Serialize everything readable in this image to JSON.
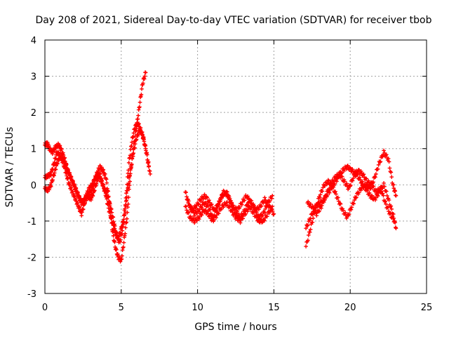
{
  "chart_data": {
    "type": "scatter",
    "title": "Day 208 of 2021, Sidereal Day-to-day VTEC variation (SDTVAR) for receiver tbob",
    "xlabel": "GPS time / hours",
    "ylabel": "SDTVAR / TECUs",
    "xlim": [
      0,
      25
    ],
    "ylim": [
      -3,
      4
    ],
    "x_ticks": [
      0,
      5,
      10,
      15,
      20,
      25
    ],
    "y_ticks": [
      -3,
      -2,
      -1,
      0,
      1,
      2,
      3,
      4
    ],
    "grid": true,
    "marker": "+",
    "series": [
      {
        "name": "SDTVAR",
        "color": "#ff0000",
        "segments": [
          {
            "x": [
              0.0,
              0.15,
              0.3,
              0.5,
              0.7,
              0.9,
              1.1,
              1.3,
              1.5,
              1.7,
              1.9,
              2.1,
              2.3,
              2.5,
              2.7,
              2.9,
              3.1,
              3.3,
              3.5,
              3.7,
              3.9,
              4.1,
              4.3,
              4.5,
              4.7,
              4.9,
              5.1,
              5.3,
              5.5,
              5.7,
              5.9,
              6.1,
              6.3,
              6.5,
              6.7,
              6.9
            ],
            "y": [
              1.1,
              1.15,
              1.0,
              0.9,
              1.05,
              1.1,
              0.95,
              0.7,
              0.4,
              0.2,
              0.0,
              -0.2,
              -0.4,
              -0.5,
              -0.3,
              -0.1,
              0.0,
              0.2,
              0.3,
              0.1,
              -0.1,
              -0.3,
              -0.6,
              -1.0,
              -1.4,
              -1.6,
              -1.2,
              -0.4,
              0.6,
              1.2,
              1.6,
              1.7,
              1.5,
              1.2,
              0.8,
              0.3
            ]
          },
          {
            "x": [
              0.0,
              0.2,
              0.4,
              0.6,
              0.8,
              1.0,
              1.2,
              1.4,
              1.6,
              1.8,
              2.0,
              2.2,
              2.4,
              2.6,
              2.8,
              3.0,
              3.2,
              3.4,
              3.6,
              3.8,
              4.0,
              4.2,
              4.4,
              4.6,
              4.8,
              5.0,
              5.2,
              5.4,
              5.6,
              5.8,
              6.0,
              6.2,
              6.4,
              6.6
            ],
            "y": [
              0.2,
              0.25,
              0.3,
              0.6,
              0.9,
              0.8,
              0.7,
              0.5,
              0.3,
              0.1,
              -0.1,
              -0.3,
              -0.5,
              -0.4,
              -0.3,
              -0.2,
              0.0,
              0.3,
              0.5,
              0.4,
              0.2,
              -0.4,
              -1.2,
              -1.7,
              -2.0,
              -2.1,
              -1.5,
              -0.8,
              0.3,
              1.0,
              1.6,
              2.2,
              2.8,
              3.1
            ]
          },
          {
            "x": [
              0.0,
              0.2,
              0.4,
              0.6,
              0.8,
              1.0,
              1.2,
              1.4,
              1.6,
              1.8,
              2.0,
              2.2,
              2.4,
              2.6,
              2.8,
              3.0,
              3.2,
              3.4,
              3.6,
              3.8,
              4.0,
              4.2,
              4.4,
              4.6,
              4.8,
              5.0,
              5.2,
              5.4,
              5.6,
              5.8,
              6.0,
              6.2,
              6.4,
              6.6,
              6.8
            ],
            "y": [
              -0.1,
              -0.15,
              0.0,
              0.3,
              0.6,
              0.8,
              0.6,
              0.3,
              0.0,
              -0.2,
              -0.4,
              -0.6,
              -0.8,
              -0.5,
              -0.3,
              -0.4,
              -0.2,
              0.1,
              0.3,
              0.0,
              -0.3,
              -0.7,
              -1.0,
              -1.3,
              -1.5,
              -1.2,
              -0.9,
              -0.2,
              0.4,
              0.9,
              1.3,
              1.5,
              1.4,
              1.0,
              0.5
            ]
          },
          {
            "x": [
              9.2,
              9.5,
              9.8,
              10.1,
              10.4,
              10.7,
              11.0,
              11.3,
              11.6,
              11.9,
              12.2,
              12.5,
              12.8,
              13.1,
              13.4,
              13.7,
              14.0,
              14.3,
              14.6,
              14.9
            ],
            "y": [
              -0.2,
              -0.6,
              -0.8,
              -0.7,
              -0.5,
              -0.6,
              -0.9,
              -0.6,
              -0.3,
              -0.2,
              -0.5,
              -0.8,
              -0.9,
              -0.7,
              -0.4,
              -0.6,
              -0.9,
              -0.8,
              -0.5,
              -0.3
            ]
          },
          {
            "x": [
              9.2,
              9.5,
              9.8,
              10.1,
              10.4,
              10.7,
              11.0,
              11.3,
              11.6,
              11.9,
              12.2,
              12.5,
              12.8,
              13.1,
              13.4,
              13.7,
              14.0,
              14.3,
              14.6,
              14.9
            ],
            "y": [
              -0.6,
              -0.9,
              -1.0,
              -0.9,
              -0.7,
              -0.8,
              -1.0,
              -0.8,
              -0.6,
              -0.5,
              -0.7,
              -0.9,
              -1.0,
              -0.8,
              -0.6,
              -0.8,
              -1.0,
              -1.0,
              -0.8,
              -0.6
            ]
          },
          {
            "x": [
              9.3,
              9.6,
              9.9,
              10.2,
              10.5,
              10.8,
              11.1,
              11.4,
              11.7,
              12.0,
              12.3,
              12.6,
              12.9,
              13.2,
              13.5,
              13.8,
              14.1,
              14.4,
              14.7,
              15.0
            ],
            "y": [
              -0.4,
              -0.7,
              -0.6,
              -0.4,
              -0.3,
              -0.5,
              -0.7,
              -0.5,
              -0.2,
              -0.3,
              -0.6,
              -0.7,
              -0.5,
              -0.3,
              -0.5,
              -0.7,
              -0.6,
              -0.4,
              -0.6,
              -0.8
            ]
          },
          {
            "x": [
              17.1,
              17.4,
              17.7,
              18.0,
              18.3,
              18.6,
              18.9,
              19.2,
              19.5,
              19.8,
              20.1,
              20.4,
              20.7,
              21.0,
              21.3,
              21.6,
              21.9,
              22.2,
              22.5,
              22.8,
              23.0
            ],
            "y": [
              -1.7,
              -1.2,
              -0.7,
              -0.3,
              0.0,
              0.1,
              -0.1,
              -0.4,
              -0.7,
              -0.9,
              -0.6,
              -0.3,
              -0.1,
              0.0,
              -0.1,
              0.2,
              0.6,
              0.9,
              0.7,
              0.0,
              -0.3
            ]
          },
          {
            "x": [
              17.1,
              17.4,
              17.7,
              18.0,
              18.3,
              18.6,
              18.9,
              19.2,
              19.5,
              19.8,
              20.1,
              20.4,
              20.7,
              21.0,
              21.3,
              21.6,
              21.9,
              22.2,
              22.5,
              22.8,
              23.0
            ],
            "y": [
              -1.2,
              -0.9,
              -0.6,
              -0.5,
              -0.4,
              -0.2,
              0.0,
              0.2,
              0.4,
              0.5,
              0.4,
              0.3,
              0.1,
              -0.1,
              -0.3,
              -0.4,
              -0.2,
              0.0,
              -0.4,
              -0.8,
              -1.2
            ]
          },
          {
            "x": [
              17.2,
              17.5,
              17.8,
              18.1,
              18.4,
              18.7,
              19.0,
              19.3,
              19.6,
              19.9,
              20.2,
              20.5,
              20.8,
              21.1,
              21.4,
              21.7,
              22.0,
              22.3,
              22.6,
              22.9
            ],
            "y": [
              -0.5,
              -0.6,
              -0.8,
              -0.6,
              -0.3,
              0.0,
              0.2,
              0.3,
              0.1,
              -0.1,
              0.2,
              0.4,
              0.3,
              0.1,
              0.0,
              -0.2,
              -0.1,
              -0.5,
              -0.8,
              -1.0
            ]
          }
        ]
      }
    ]
  }
}
